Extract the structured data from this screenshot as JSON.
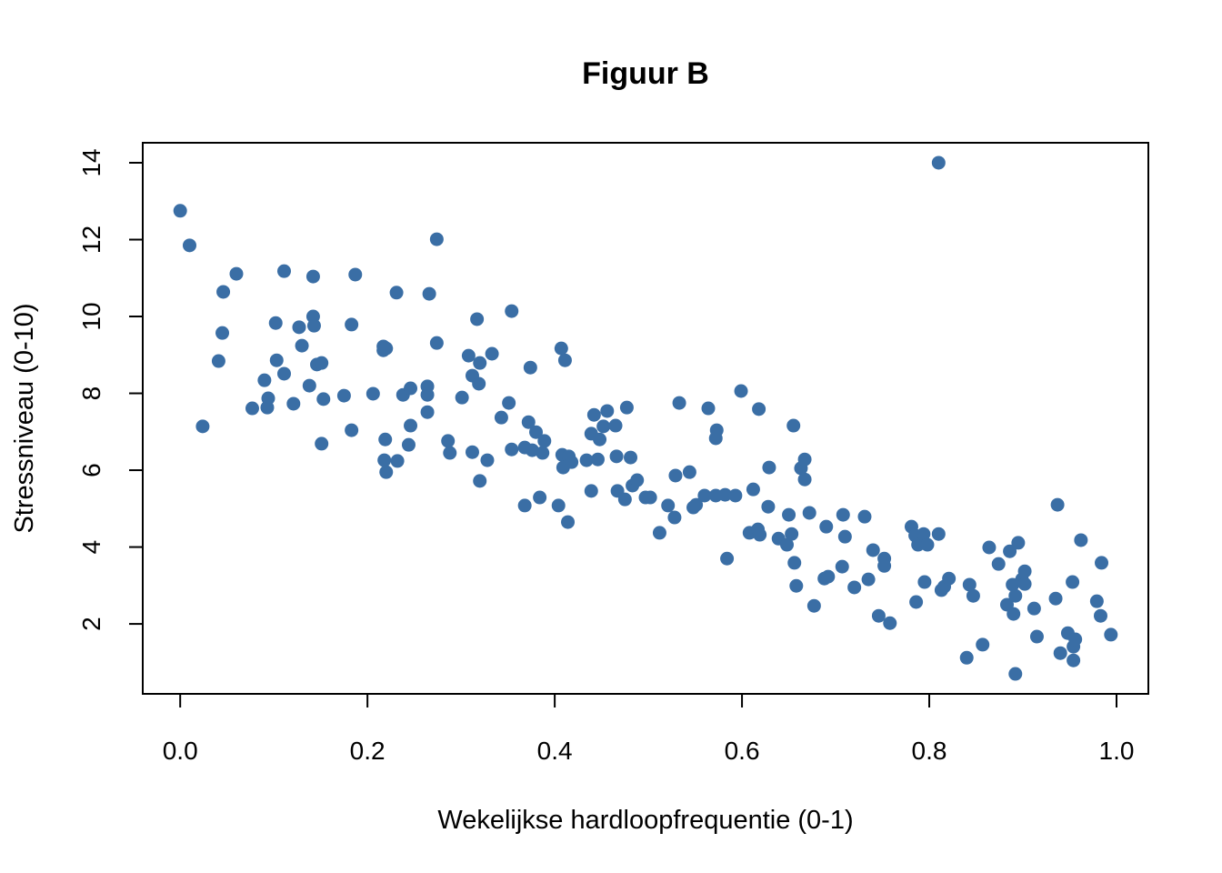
{
  "chart_data": {
    "type": "scatter",
    "title": "Figuur B",
    "x_label": "Wekelijkse hardloopfrequentie (0-1)",
    "y_label": "Stressniveau (0-10)",
    "color": "#3a6ea5",
    "xlim": [
      -0.04,
      1.034
    ],
    "ylim": [
      0.18,
      14.52
    ],
    "xticks": [
      {
        "value": 0,
        "label": "0.0"
      },
      0.2,
      0.4,
      0.6,
      0.8,
      {
        "value": 1,
        "label": "1.0"
      }
    ],
    "yticks": [
      2,
      4,
      6,
      8,
      10,
      12,
      14
    ],
    "x": [
      0.0,
      0.01,
      0.024,
      0.041,
      0.045,
      0.046,
      0.06,
      0.077,
      0.09,
      0.093,
      0.094,
      0.102,
      0.103,
      0.111,
      0.111,
      0.121,
      0.127,
      0.13,
      0.138,
      0.142,
      0.142,
      0.143,
      0.146,
      0.151,
      0.151,
      0.153,
      0.175,
      0.183,
      0.183,
      0.187,
      0.206,
      0.217,
      0.217,
      0.22,
      0.218,
      0.219,
      0.22,
      0.231,
      0.232,
      0.238,
      0.244,
      0.246,
      0.246,
      0.264,
      0.264,
      0.264,
      0.266,
      0.274,
      0.274,
      0.286,
      0.288,
      0.301,
      0.308,
      0.312,
      0.312,
      0.317,
      0.319,
      0.32,
      0.32,
      0.328,
      0.333,
      0.343,
      0.351,
      0.354,
      0.354,
      0.368,
      0.368,
      0.372,
      0.374,
      0.376,
      0.38,
      0.384,
      0.387,
      0.389,
      0.404,
      0.407,
      0.408,
      0.409,
      0.411,
      0.414,
      0.415,
      0.418,
      0.434,
      0.439,
      0.439,
      0.442,
      0.446,
      0.448,
      0.452,
      0.456,
      0.465,
      0.466,
      0.467,
      0.475,
      0.477,
      0.481,
      0.483,
      0.488,
      0.497,
      0.502,
      0.512,
      0.521,
      0.528,
      0.529,
      0.533,
      0.544,
      0.548,
      0.551,
      0.56,
      0.564,
      0.572,
      0.572,
      0.573,
      0.582,
      0.584,
      0.593,
      0.599,
      0.608,
      0.612,
      0.617,
      0.618,
      0.619,
      0.628,
      0.629,
      0.639,
      0.648,
      0.65,
      0.653,
      0.655,
      0.656,
      0.658,
      0.663,
      0.667,
      0.667,
      0.672,
      0.677,
      0.688,
      0.69,
      0.692,
      0.707,
      0.708,
      0.71,
      0.72,
      0.731,
      0.735,
      0.74,
      0.746,
      0.752,
      0.752,
      0.758,
      0.781,
      0.785,
      0.786,
      0.788,
      0.794,
      0.795,
      0.798,
      0.81,
      0.81,
      0.813,
      0.816,
      0.821,
      0.84,
      0.843,
      0.847,
      0.857,
      0.864,
      0.874,
      0.883,
      0.886,
      0.889,
      0.89,
      0.892,
      0.892,
      0.895,
      0.899,
      0.902,
      0.902,
      0.912,
      0.915,
      0.935,
      0.937,
      0.94,
      0.948,
      0.953,
      0.954,
      0.956,
      0.954,
      0.962,
      0.979,
      0.983,
      0.984,
      0.994
    ],
    "y": [
      12.75,
      11.85,
      7.14,
      8.84,
      9.57,
      10.64,
      11.11,
      7.61,
      8.34,
      7.63,
      7.87,
      9.83,
      8.86,
      11.18,
      8.51,
      7.73,
      9.72,
      9.24,
      8.2,
      11.04,
      10.0,
      9.76,
      8.75,
      8.79,
      6.69,
      7.85,
      7.94,
      9.79,
      7.04,
      11.09,
      7.99,
      9.22,
      9.12,
      9.17,
      6.26,
      6.8,
      5.95,
      10.62,
      6.24,
      7.96,
      6.66,
      8.13,
      7.16,
      7.51,
      8.18,
      7.96,
      10.59,
      12.01,
      9.31,
      6.76,
      6.45,
      7.89,
      8.98,
      8.46,
      6.47,
      9.93,
      8.25,
      8.79,
      5.72,
      6.26,
      9.03,
      7.37,
      7.75,
      10.14,
      6.54,
      5.08,
      6.59,
      7.25,
      8.67,
      6.52,
      6.99,
      5.29,
      6.45,
      6.76,
      5.08,
      9.17,
      6.4,
      6.07,
      8.86,
      4.65,
      6.36,
      6.21,
      6.26,
      5.46,
      6.95,
      7.44,
      6.28,
      6.8,
      7.14,
      7.54,
      7.16,
      6.36,
      5.46,
      5.24,
      7.63,
      6.33,
      5.6,
      5.74,
      5.29,
      5.29,
      4.37,
      5.08,
      4.77,
      5.86,
      7.75,
      5.95,
      5.03,
      5.1,
      5.34,
      7.61,
      5.34,
      6.83,
      7.04,
      5.36,
      3.7,
      5.34,
      8.06,
      4.37,
      5.5,
      4.46,
      7.59,
      4.32,
      5.05,
      6.07,
      4.22,
      4.06,
      4.84,
      4.34,
      7.16,
      3.59,
      2.99,
      6.05,
      6.28,
      5.76,
      4.89,
      2.47,
      3.18,
      4.53,
      3.23,
      3.49,
      4.84,
      4.27,
      2.95,
      4.79,
      3.16,
      3.92,
      2.21,
      3.7,
      3.51,
      2.02,
      4.53,
      4.3,
      2.57,
      4.06,
      4.34,
      3.09,
      4.06,
      14.0,
      4.34,
      2.88,
      2.97,
      3.18,
      1.12,
      3.02,
      2.73,
      1.46,
      3.99,
      3.56,
      2.5,
      3.89,
      3.02,
      2.26,
      0.7,
      2.73,
      4.11,
      3.16,
      3.37,
      3.04,
      2.4,
      1.67,
      2.66,
      5.1,
      1.24,
      1.76,
      3.09,
      1.41,
      1.6,
      1.05,
      4.18,
      2.59,
      2.21,
      3.59,
      1.72
    ]
  }
}
